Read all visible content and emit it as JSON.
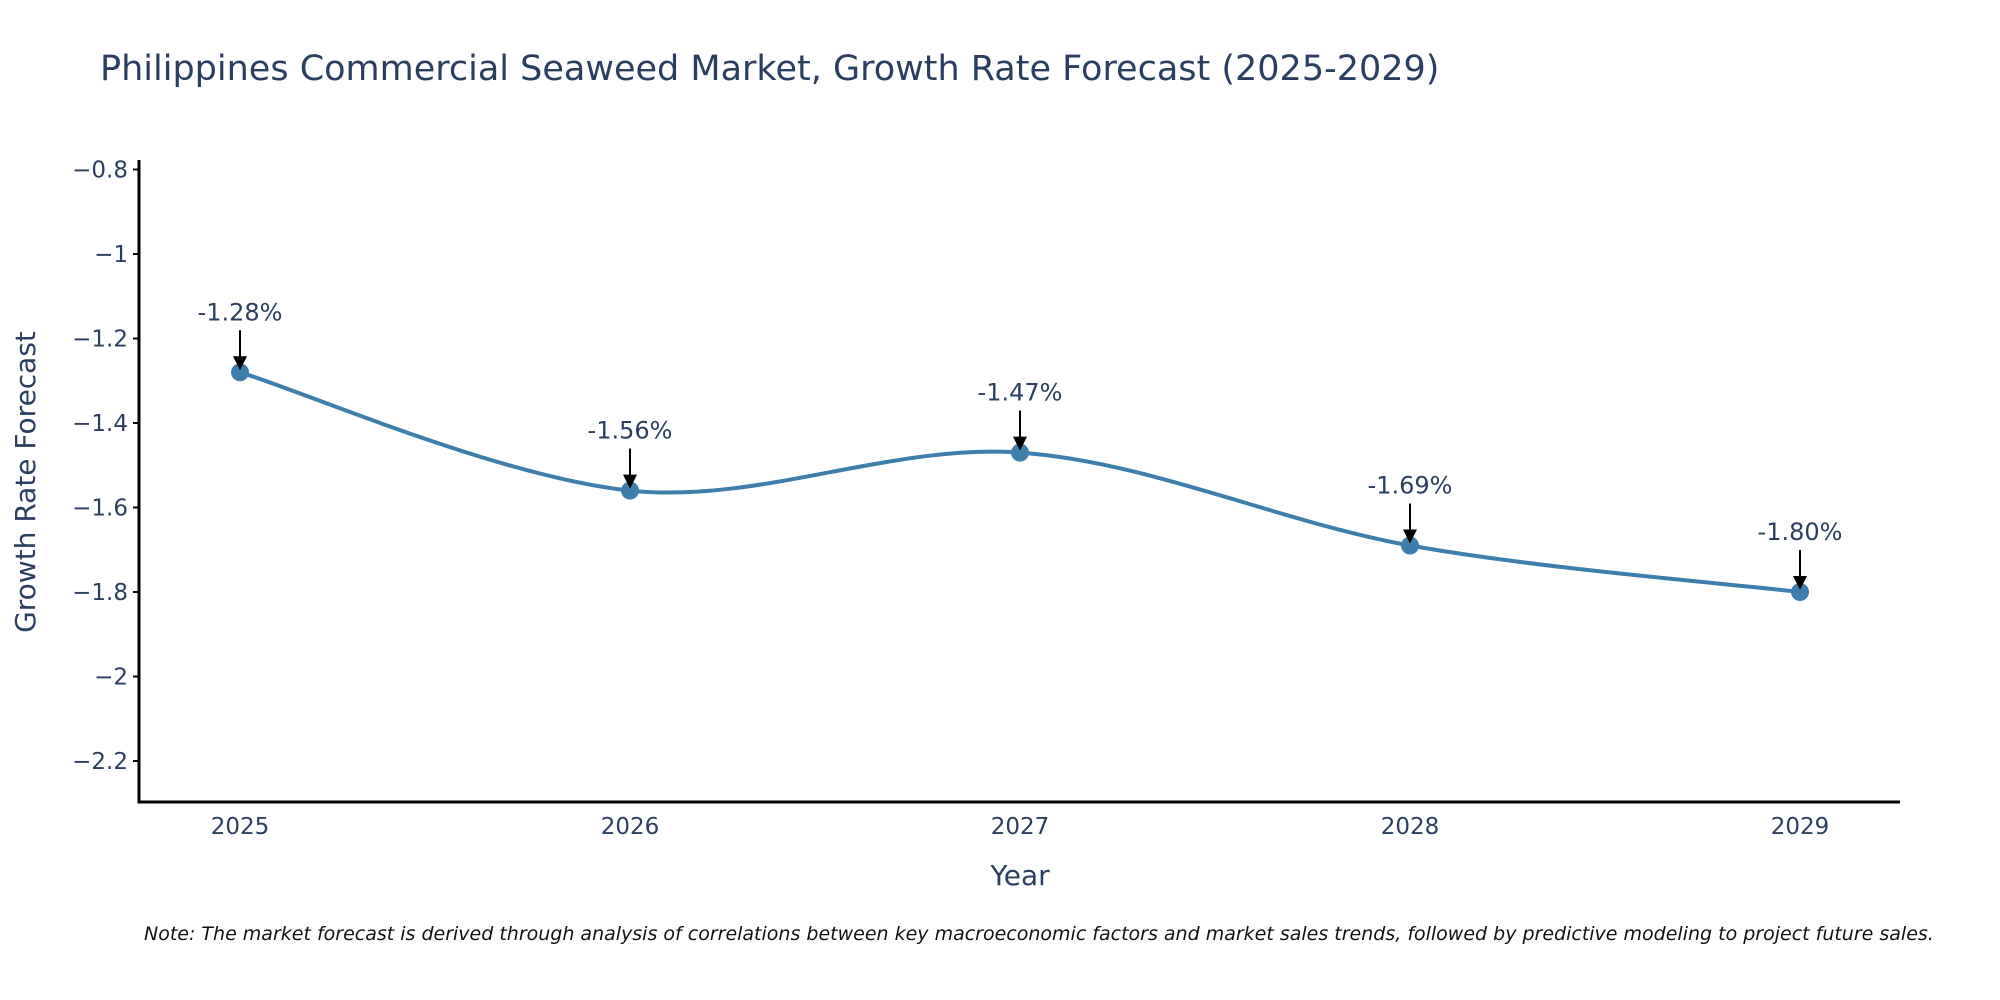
{
  "chart_data": {
    "type": "line",
    "title": "Philippines Commercial Seaweed Market, Growth Rate Forecast (2025-2029)",
    "xlabel": "Year",
    "ylabel": "Growth Rate Forecast",
    "categories": [
      "2025",
      "2026",
      "2027",
      "2028",
      "2029"
    ],
    "series": [
      {
        "name": "Growth Rate Forecast",
        "values": [
          -1.28,
          -1.56,
          -1.47,
          -1.69,
          -1.8
        ],
        "labels": [
          "-1.28%",
          "-1.56%",
          "-1.47%",
          "-1.69%",
          "-1.80%"
        ]
      }
    ],
    "ylim": [
      -2.3,
      -0.78
    ],
    "yticks": [
      -0.8,
      -1,
      -1.2,
      -1.4,
      -1.6,
      -1.8,
      -2,
      -2.2
    ],
    "ytick_labels": [
      "−0.8",
      "−1",
      "−1.2",
      "−1.4",
      "−1.6",
      "−1.8",
      "−2",
      "−2.2"
    ],
    "grid": false,
    "line_shape": "spline",
    "line_color": "#3d7eac",
    "note": "Note: The market forecast is derived through analysis of correlations between key macroeconomic factors and market sales trends, followed by predictive modeling to project future sales."
  }
}
